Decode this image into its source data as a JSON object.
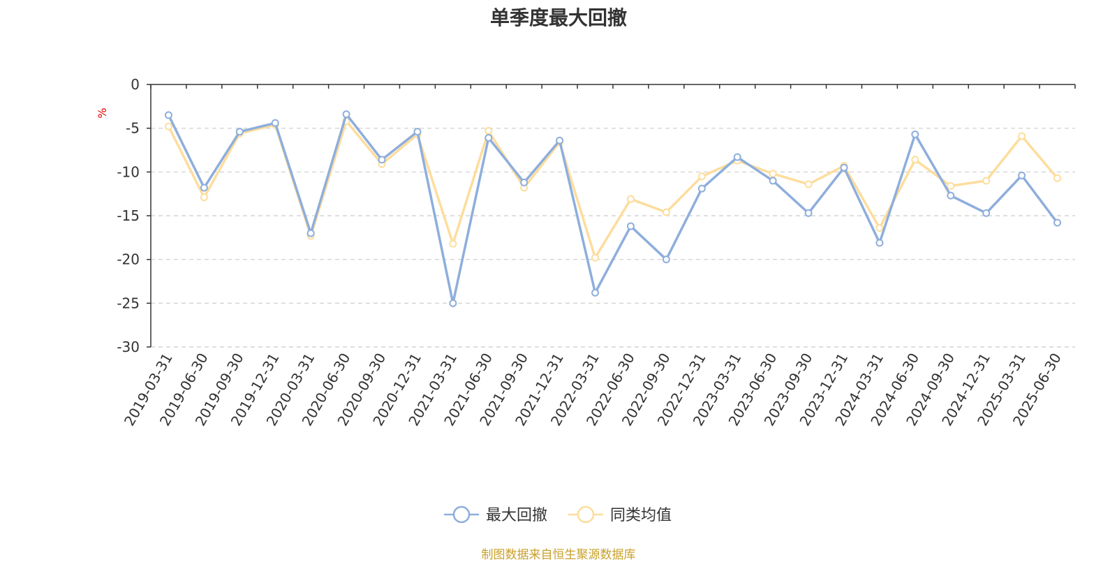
{
  "title": "单季度最大回撤",
  "source": "制图数据来自恒生聚源数据库",
  "chart_data": {
    "type": "line",
    "title": "单季度最大回撤",
    "ylabel": "%",
    "ylim": [
      -30,
      0
    ],
    "yticks": [
      0,
      -5,
      -10,
      -15,
      -20,
      -25,
      -30
    ],
    "grid": true,
    "legend_position": "bottom-center",
    "x": [
      "2019-03-31",
      "2019-06-30",
      "2019-09-30",
      "2019-12-31",
      "2020-03-31",
      "2020-06-30",
      "2020-09-30",
      "2020-12-31",
      "2021-03-31",
      "2021-06-30",
      "2021-09-30",
      "2021-12-31",
      "2022-03-31",
      "2022-06-30",
      "2022-09-30",
      "2022-12-31",
      "2023-03-31",
      "2023-06-30",
      "2023-09-30",
      "2023-12-31",
      "2024-03-31",
      "2024-06-30",
      "2024-09-30",
      "2024-12-31",
      "2025-03-31",
      "2025-06-30"
    ],
    "series": [
      {
        "name": "最大回撤",
        "color": "#8eaedc",
        "values": [
          -3.5,
          -11.8,
          -5.4,
          -4.4,
          -17.0,
          -3.4,
          -8.6,
          -5.4,
          -25.0,
          -6.1,
          -11.2,
          -6.4,
          -23.8,
          -16.2,
          -20.0,
          -11.9,
          -8.3,
          -11.0,
          -14.7,
          -9.5,
          -18.1,
          -5.7,
          -12.7,
          -14.7,
          -10.4,
          -15.8
        ]
      },
      {
        "name": "同类均值",
        "color": "#fddd9d",
        "values": [
          -4.8,
          -12.9,
          -5.6,
          -4.6,
          -17.3,
          -4.2,
          -9.1,
          -5.7,
          -18.2,
          -5.3,
          -11.8,
          -6.6,
          -19.8,
          -13.1,
          -14.6,
          -10.5,
          -8.7,
          -10.2,
          -11.4,
          -9.3,
          -16.4,
          -8.6,
          -11.6,
          -11.0,
          -5.9,
          -10.7
        ]
      }
    ]
  }
}
